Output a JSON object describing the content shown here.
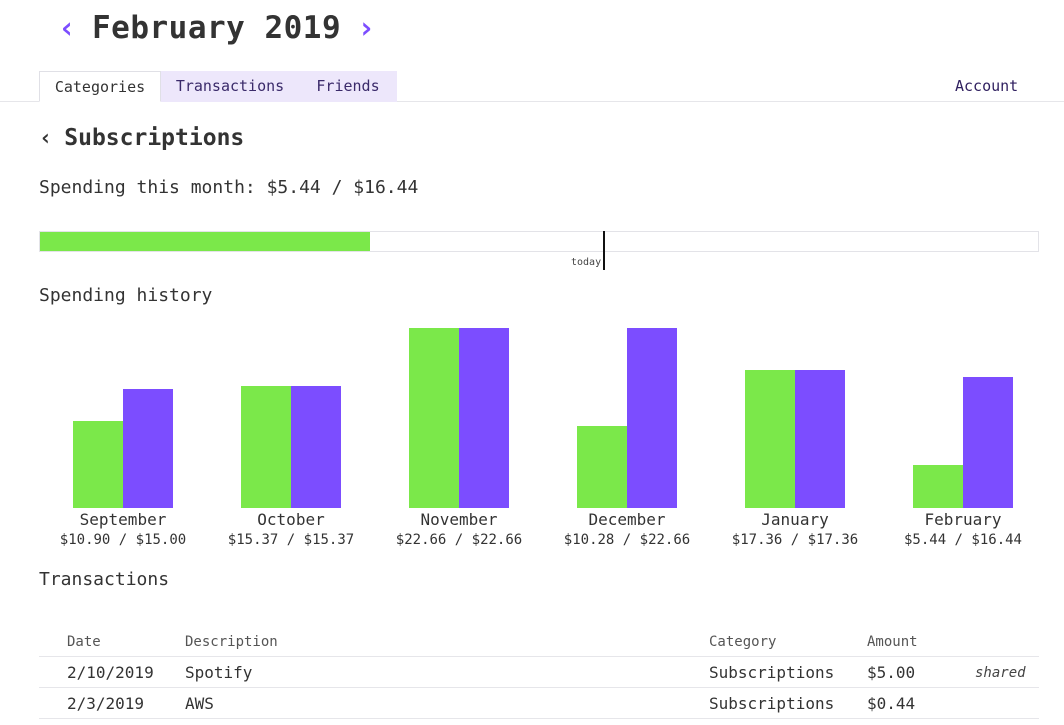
{
  "header": {
    "month_title": "February 2019",
    "prev_icon": "‹",
    "next_icon": "›"
  },
  "tabs": [
    {
      "label": "Categories",
      "active": true
    },
    {
      "label": "Transactions",
      "active": false
    },
    {
      "label": "Friends",
      "active": false
    }
  ],
  "account_label": "Account",
  "category": {
    "back_icon": "‹",
    "title": "Subscriptions",
    "spending_line": "Spending this month: $5.44 / $16.44",
    "spent": 5.44,
    "budget": 16.44,
    "today_label": "today"
  },
  "history": {
    "title": "Spending history"
  },
  "chart_data": {
    "type": "bar",
    "categories": [
      "September",
      "October",
      "November",
      "December",
      "January",
      "February"
    ],
    "series": [
      {
        "values": [
          10.9,
          15.37,
          22.66,
          10.28,
          17.36,
          5.44
        ]
      },
      {
        "values": [
          15.0,
          15.37,
          22.66,
          22.66,
          17.36,
          16.44
        ]
      }
    ],
    "data_labels": [
      "$10.90 / $15.00",
      "$15.37 / $15.37",
      "$22.66 / $22.66",
      "$10.28 / $22.66",
      "$17.36 / $17.36",
      "$5.44 / $16.44"
    ],
    "colors": {
      "spent": "#7be84a",
      "budget": "#7c4dff"
    }
  },
  "transactions": {
    "title": "Transactions",
    "columns": [
      "Date",
      "Description",
      "Category",
      "Amount"
    ],
    "rows": [
      {
        "date": "2/10/2019",
        "description": "Spotify",
        "category": "Subscriptions",
        "amount": "$5.00",
        "shared": "shared"
      },
      {
        "date": "2/3/2019",
        "description": "AWS",
        "category": "Subscriptions",
        "amount": "$0.44",
        "shared": ""
      }
    ]
  },
  "colors": {
    "accent": "#7c4dff",
    "progress": "#7be84a",
    "tab_inactive": "#ede7fb"
  }
}
